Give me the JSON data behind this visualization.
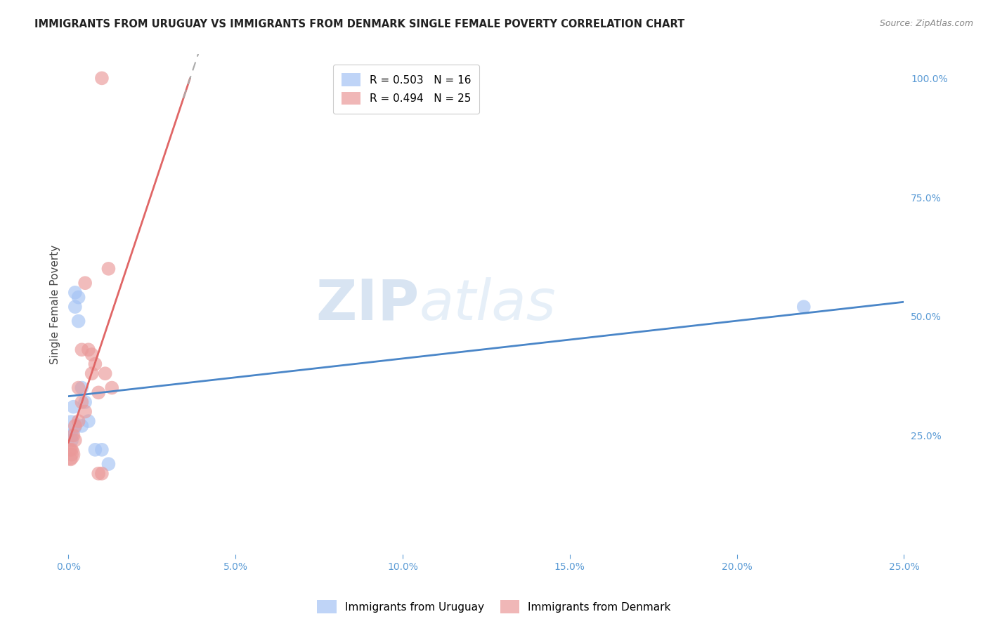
{
  "title": "IMMIGRANTS FROM URUGUAY VS IMMIGRANTS FROM DENMARK SINGLE FEMALE POVERTY CORRELATION CHART",
  "source": "Source: ZipAtlas.com",
  "ylabel": "Single Female Poverty",
  "xlim": [
    0.0,
    0.25
  ],
  "ylim": [
    0.0,
    1.05
  ],
  "xtick_labels": [
    "0.0%",
    "5.0%",
    "10.0%",
    "15.0%",
    "20.0%",
    "25.0%"
  ],
  "xtick_vals": [
    0.0,
    0.05,
    0.1,
    0.15,
    0.2,
    0.25
  ],
  "right_ytick_labels": [
    "25.0%",
    "50.0%",
    "75.0%",
    "100.0%"
  ],
  "right_ytick_vals": [
    0.25,
    0.5,
    0.75,
    1.0
  ],
  "legend_r_uruguay": "R = 0.503",
  "legend_n_uruguay": "N = 16",
  "legend_r_denmark": "R = 0.494",
  "legend_n_denmark": "N = 25",
  "color_uruguay": "#a4c2f4",
  "color_denmark": "#ea9999",
  "color_trendline_uruguay": "#4a86c8",
  "color_trendline_denmark": "#e06666",
  "watermark_zip": "ZIP",
  "watermark_atlas": "atlas",
  "background_color": "#ffffff",
  "grid_color": "#dddddd",
  "uruguay_x": [
    0.0008,
    0.001,
    0.001,
    0.0015,
    0.002,
    0.002,
    0.003,
    0.003,
    0.004,
    0.004,
    0.005,
    0.006,
    0.008,
    0.01,
    0.012,
    0.22
  ],
  "uruguay_y": [
    0.27,
    0.25,
    0.24,
    0.31,
    0.55,
    0.52,
    0.54,
    0.49,
    0.27,
    0.35,
    0.32,
    0.28,
    0.22,
    0.22,
    0.19,
    0.52
  ],
  "uruguay_sizes": [
    500,
    200,
    200,
    200,
    200,
    200,
    200,
    200,
    200,
    200,
    200,
    200,
    200,
    200,
    200,
    200
  ],
  "denmark_x": [
    0.0003,
    0.0005,
    0.0007,
    0.001,
    0.001,
    0.0015,
    0.002,
    0.002,
    0.003,
    0.003,
    0.004,
    0.004,
    0.005,
    0.005,
    0.006,
    0.007,
    0.007,
    0.008,
    0.009,
    0.009,
    0.01,
    0.011,
    0.012,
    0.013,
    0.01
  ],
  "denmark_y": [
    0.21,
    0.22,
    0.2,
    0.22,
    0.21,
    0.25,
    0.27,
    0.24,
    0.35,
    0.28,
    0.43,
    0.32,
    0.3,
    0.57,
    0.43,
    0.42,
    0.38,
    0.4,
    0.34,
    0.17,
    0.17,
    0.38,
    0.6,
    0.35,
    1.0
  ],
  "denmark_sizes": [
    500,
    200,
    200,
    200,
    200,
    200,
    200,
    200,
    200,
    200,
    200,
    200,
    200,
    200,
    200,
    200,
    200,
    200,
    200,
    200,
    200,
    200,
    200,
    200,
    200
  ]
}
